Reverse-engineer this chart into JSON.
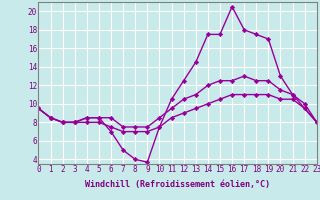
{
  "xlabel": "Windchill (Refroidissement éolien,°C)",
  "x": [
    0,
    1,
    2,
    3,
    4,
    5,
    6,
    7,
    8,
    9,
    10,
    11,
    12,
    13,
    14,
    15,
    16,
    17,
    18,
    19,
    20,
    21,
    22,
    23
  ],
  "line1": [
    9.5,
    8.5,
    8.0,
    8.0,
    8.5,
    8.5,
    7.0,
    5.0,
    4.0,
    3.7,
    7.5,
    10.5,
    12.5,
    14.5,
    17.5,
    17.5,
    20.5,
    18.0,
    17.5,
    17.0,
    13.0,
    11.0,
    10.0,
    8.0
  ],
  "line2": [
    9.5,
    8.5,
    8.0,
    8.0,
    8.5,
    8.5,
    8.5,
    7.5,
    7.5,
    7.5,
    8.5,
    9.5,
    10.5,
    11.0,
    12.0,
    12.5,
    12.5,
    13.0,
    12.5,
    12.5,
    11.5,
    11.0,
    9.5,
    8.0
  ],
  "line3": [
    9.5,
    8.5,
    8.0,
    8.0,
    8.0,
    8.0,
    7.5,
    7.0,
    7.0,
    7.0,
    7.5,
    8.5,
    9.0,
    9.5,
    10.0,
    10.5,
    11.0,
    11.0,
    11.0,
    11.0,
    10.5,
    10.5,
    9.5,
    8.0
  ],
  "line_color": "#990099",
  "bg_color": "#c8eaea",
  "grid_color": "#ffffff",
  "ylim": [
    3.5,
    21.0
  ],
  "yticks": [
    4,
    6,
    8,
    10,
    12,
    14,
    16,
    18,
    20
  ],
  "xlim": [
    0,
    23
  ],
  "marker": "D",
  "markersize": 2.2,
  "linewidth": 1.0,
  "xlabel_fontsize": 6,
  "tick_fontsize": 5.5,
  "tick_color": "#800080"
}
